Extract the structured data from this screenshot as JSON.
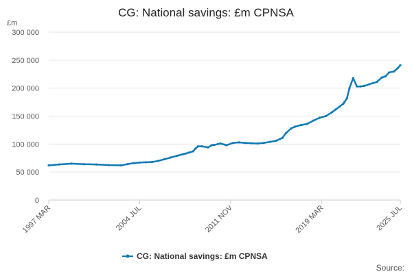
{
  "colors": {
    "series": "#0f79b5",
    "grid": "#e6e6e6",
    "axis": "#cccccc"
  },
  "chart_data": {
    "type": "line",
    "title": "CG: National savings: £m CPNSA",
    "ylabel": "£m",
    "ylim": [
      0,
      300000
    ],
    "y_ticks": [
      0,
      50000,
      100000,
      150000,
      200000,
      250000,
      300000
    ],
    "y_tick_labels": [
      "0",
      "50 000",
      "100 000",
      "150 000",
      "200 000",
      "250 000",
      "300 000"
    ],
    "x_range": [
      1997.167,
      2025.5
    ],
    "x_ticks": [
      1997.167,
      2004.5,
      2011.833,
      2019.167,
      2025.5
    ],
    "x_tick_labels": [
      "1997 MAR",
      "2004 JUL",
      "2011 NOV",
      "2019 MAR",
      "2025 JUL"
    ],
    "legend": {
      "label": "CG: National savings: £m CPNSA",
      "position": "bottom"
    },
    "source_label": "Source:",
    "series": [
      {
        "name": "CG: National savings: £m CPNSA",
        "x": [
          1997.167,
          1998.0,
          1999.0,
          2000.0,
          2001.0,
          2002.0,
          2003.0,
          2003.5,
          2004.0,
          2004.5,
          2005.0,
          2005.5,
          2006.0,
          2006.5,
          2007.0,
          2007.5,
          2008.0,
          2008.2,
          2008.5,
          2008.8,
          2009.0,
          2009.2,
          2009.5,
          2010.0,
          2010.3,
          2010.5,
          2010.8,
          2011.0,
          2011.5,
          2012.0,
          2012.5,
          2013.0,
          2013.5,
          2014.0,
          2014.5,
          2015.0,
          2015.5,
          2015.8,
          2016.0,
          2016.3,
          2016.7,
          2017.0,
          2017.5,
          2018.0,
          2018.5,
          2019.0,
          2019.5,
          2020.0,
          2020.3,
          2020.6,
          2020.9,
          2021.0,
          2021.2,
          2021.4,
          2021.7,
          2022.0,
          2022.3,
          2022.6,
          2023.0,
          2023.3,
          2023.6,
          2024.0,
          2024.3,
          2024.6,
          2025.0,
          2025.3,
          2025.5
        ],
        "values": [
          62000,
          63500,
          65000,
          64000,
          63500,
          62500,
          62000,
          64000,
          66000,
          67000,
          67500,
          68000,
          70000,
          73000,
          76000,
          79000,
          82000,
          83000,
          85000,
          87000,
          92000,
          96000,
          96000,
          94000,
          98000,
          98500,
          100000,
          101000,
          98000,
          102000,
          103000,
          102000,
          101500,
          101000,
          102000,
          104000,
          106000,
          109000,
          111000,
          120000,
          128000,
          131000,
          134000,
          136000,
          142000,
          147000,
          150000,
          157000,
          162000,
          167000,
          172000,
          175000,
          182000,
          200000,
          218000,
          203000,
          203000,
          204000,
          207000,
          209000,
          211000,
          219000,
          221000,
          228000,
          230000,
          236000,
          241000
        ]
      }
    ]
  }
}
